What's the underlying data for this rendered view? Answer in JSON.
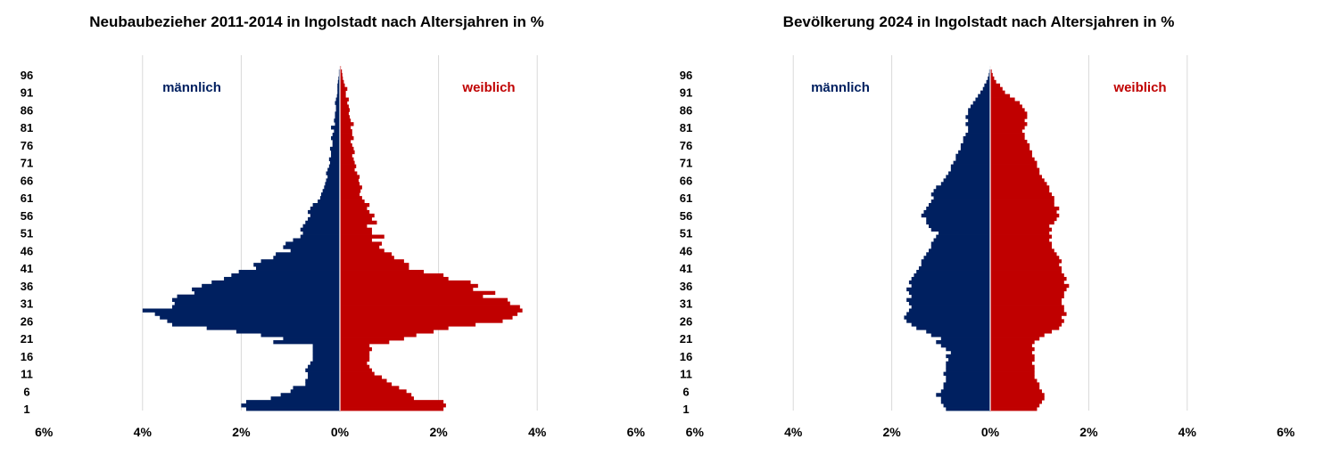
{
  "chart_data": [
    {
      "type": "bar",
      "orientation": "population-pyramid",
      "title": "Neubaubezieher 2011-2014 in Ingolstadt nach Altersjahren in %",
      "x_ticks": [
        "6%",
        "4%",
        "2%",
        "0%",
        "2%",
        "4%",
        "6%"
      ],
      "xlim": [
        -6,
        6
      ],
      "y_ticks": [
        96,
        91,
        86,
        81,
        76,
        71,
        66,
        61,
        56,
        51,
        46,
        41,
        36,
        31,
        26,
        21,
        16,
        11,
        6,
        1
      ],
      "ages": [
        1,
        2,
        3,
        4,
        5,
        6,
        7,
        8,
        9,
        10,
        11,
        12,
        13,
        14,
        15,
        16,
        17,
        18,
        19,
        20,
        21,
        22,
        23,
        24,
        25,
        26,
        27,
        28,
        29,
        30,
        31,
        32,
        33,
        34,
        35,
        36,
        37,
        38,
        39,
        40,
        41,
        42,
        43,
        44,
        45,
        46,
        47,
        48,
        49,
        50,
        51,
        52,
        53,
        54,
        55,
        56,
        57,
        58,
        59,
        60,
        61,
        62,
        63,
        64,
        65,
        66,
        67,
        68,
        69,
        70,
        71,
        72,
        73,
        74,
        75,
        76,
        77,
        78,
        79,
        80,
        81,
        82,
        83,
        84,
        85,
        86,
        87,
        88,
        89,
        90,
        91,
        92,
        93,
        94,
        95,
        96,
        97,
        98
      ],
      "series": [
        {
          "name": "männlich",
          "color": "#002060",
          "values": [
            1.9,
            2.0,
            1.9,
            1.4,
            1.2,
            1.0,
            0.95,
            0.7,
            0.7,
            0.65,
            0.65,
            0.7,
            0.65,
            0.6,
            0.55,
            0.55,
            0.55,
            0.55,
            0.55,
            1.35,
            1.15,
            1.6,
            2.1,
            2.7,
            3.4,
            3.5,
            3.65,
            3.75,
            4.0,
            3.4,
            3.35,
            3.4,
            3.3,
            2.95,
            3.0,
            2.8,
            2.6,
            2.35,
            2.2,
            2.05,
            1.7,
            1.75,
            1.6,
            1.35,
            1.3,
            1.0,
            1.15,
            1.1,
            0.95,
            0.8,
            0.75,
            0.8,
            0.75,
            0.7,
            0.65,
            0.6,
            0.65,
            0.6,
            0.55,
            0.45,
            0.4,
            0.38,
            0.35,
            0.32,
            0.3,
            0.28,
            0.25,
            0.28,
            0.25,
            0.22,
            0.2,
            0.22,
            0.18,
            0.18,
            0.2,
            0.15,
            0.15,
            0.18,
            0.15,
            0.12,
            0.18,
            0.1,
            0.12,
            0.1,
            0.1,
            0.08,
            0.08,
            0.1,
            0.08,
            0.06,
            0.05,
            0.05,
            0.05,
            0.04,
            0.03,
            0.02,
            0.02,
            0.01
          ]
        },
        {
          "name": "weiblich",
          "color": "#c00000",
          "values": [
            2.1,
            2.15,
            2.1,
            1.5,
            1.45,
            1.35,
            1.2,
            1.05,
            0.95,
            0.85,
            0.7,
            0.65,
            0.6,
            0.55,
            0.6,
            0.6,
            0.6,
            0.65,
            0.6,
            1.0,
            1.3,
            1.55,
            1.9,
            2.2,
            2.75,
            3.3,
            3.5,
            3.6,
            3.7,
            3.65,
            3.45,
            3.4,
            2.9,
            3.15,
            2.7,
            2.8,
            2.65,
            2.2,
            2.1,
            1.7,
            1.4,
            1.4,
            1.3,
            1.1,
            1.05,
            0.9,
            0.8,
            0.85,
            0.65,
            0.9,
            0.65,
            0.65,
            0.55,
            0.75,
            0.65,
            0.7,
            0.6,
            0.55,
            0.6,
            0.5,
            0.45,
            0.4,
            0.42,
            0.45,
            0.4,
            0.38,
            0.4,
            0.35,
            0.3,
            0.33,
            0.3,
            0.28,
            0.25,
            0.3,
            0.28,
            0.25,
            0.22,
            0.28,
            0.25,
            0.25,
            0.22,
            0.28,
            0.22,
            0.2,
            0.18,
            0.2,
            0.18,
            0.15,
            0.18,
            0.12,
            0.12,
            0.15,
            0.1,
            0.08,
            0.06,
            0.05,
            0.04,
            0.02
          ]
        }
      ]
    },
    {
      "type": "bar",
      "orientation": "population-pyramid",
      "title": "Bevölkerung 2024 in Ingolstadt nach Altersjahren in %",
      "x_ticks": [
        "6%",
        "4%",
        "2%",
        "0%",
        "2%",
        "4%",
        "6%"
      ],
      "xlim": [
        -6,
        6
      ],
      "y_ticks": [
        96,
        91,
        86,
        81,
        76,
        71,
        66,
        61,
        56,
        51,
        46,
        41,
        36,
        31,
        26,
        21,
        16,
        11,
        6,
        1
      ],
      "ages": [
        1,
        2,
        3,
        4,
        5,
        6,
        7,
        8,
        9,
        10,
        11,
        12,
        13,
        14,
        15,
        16,
        17,
        18,
        19,
        20,
        21,
        22,
        23,
        24,
        25,
        26,
        27,
        28,
        29,
        30,
        31,
        32,
        33,
        34,
        35,
        36,
        37,
        38,
        39,
        40,
        41,
        42,
        43,
        44,
        45,
        46,
        47,
        48,
        49,
        50,
        51,
        52,
        53,
        54,
        55,
        56,
        57,
        58,
        59,
        60,
        61,
        62,
        63,
        64,
        65,
        66,
        67,
        68,
        69,
        70,
        71,
        72,
        73,
        74,
        75,
        76,
        77,
        78,
        79,
        80,
        81,
        82,
        83,
        84,
        85,
        86,
        87,
        88,
        89,
        90,
        91,
        92,
        93,
        94,
        95,
        96,
        97,
        98
      ],
      "series": [
        {
          "name": "männlich",
          "color": "#002060",
          "values": [
            0.9,
            0.95,
            1.0,
            1.0,
            1.1,
            1.0,
            0.95,
            0.95,
            0.9,
            0.9,
            0.95,
            0.9,
            0.9,
            0.9,
            0.85,
            0.9,
            0.8,
            0.9,
            1.0,
            1.1,
            1.0,
            1.2,
            1.3,
            1.5,
            1.6,
            1.7,
            1.75,
            1.7,
            1.65,
            1.6,
            1.65,
            1.7,
            1.6,
            1.65,
            1.7,
            1.6,
            1.65,
            1.6,
            1.55,
            1.5,
            1.45,
            1.4,
            1.4,
            1.35,
            1.3,
            1.25,
            1.2,
            1.2,
            1.15,
            1.1,
            1.05,
            1.2,
            1.25,
            1.3,
            1.3,
            1.4,
            1.35,
            1.3,
            1.25,
            1.2,
            1.15,
            1.2,
            1.15,
            1.1,
            1.0,
            0.95,
            0.9,
            0.85,
            0.8,
            0.8,
            0.75,
            0.7,
            0.7,
            0.65,
            0.6,
            0.6,
            0.55,
            0.55,
            0.5,
            0.45,
            0.45,
            0.5,
            0.45,
            0.5,
            0.45,
            0.45,
            0.4,
            0.35,
            0.3,
            0.25,
            0.2,
            0.15,
            0.12,
            0.08,
            0.05,
            0.03,
            0.02,
            0.01
          ]
        },
        {
          "name": "weiblich",
          "color": "#c00000",
          "values": [
            0.95,
            1.0,
            1.05,
            1.1,
            1.1,
            1.05,
            1.0,
            1.0,
            0.95,
            0.9,
            0.9,
            0.9,
            0.9,
            0.85,
            0.9,
            0.9,
            0.85,
            0.9,
            0.85,
            0.9,
            1.0,
            1.1,
            1.25,
            1.4,
            1.45,
            1.5,
            1.45,
            1.55,
            1.5,
            1.5,
            1.45,
            1.45,
            1.5,
            1.5,
            1.55,
            1.6,
            1.5,
            1.55,
            1.5,
            1.45,
            1.45,
            1.4,
            1.45,
            1.4,
            1.35,
            1.3,
            1.25,
            1.25,
            1.2,
            1.25,
            1.2,
            1.25,
            1.2,
            1.3,
            1.35,
            1.4,
            1.35,
            1.4,
            1.3,
            1.3,
            1.3,
            1.25,
            1.2,
            1.2,
            1.15,
            1.1,
            1.05,
            1.0,
            1.0,
            0.95,
            0.95,
            0.9,
            0.85,
            0.85,
            0.8,
            0.8,
            0.75,
            0.7,
            0.7,
            0.65,
            0.7,
            0.75,
            0.7,
            0.75,
            0.75,
            0.7,
            0.65,
            0.6,
            0.5,
            0.4,
            0.3,
            0.25,
            0.2,
            0.12,
            0.08,
            0.05,
            0.03,
            0.01
          ]
        }
      ]
    }
  ]
}
